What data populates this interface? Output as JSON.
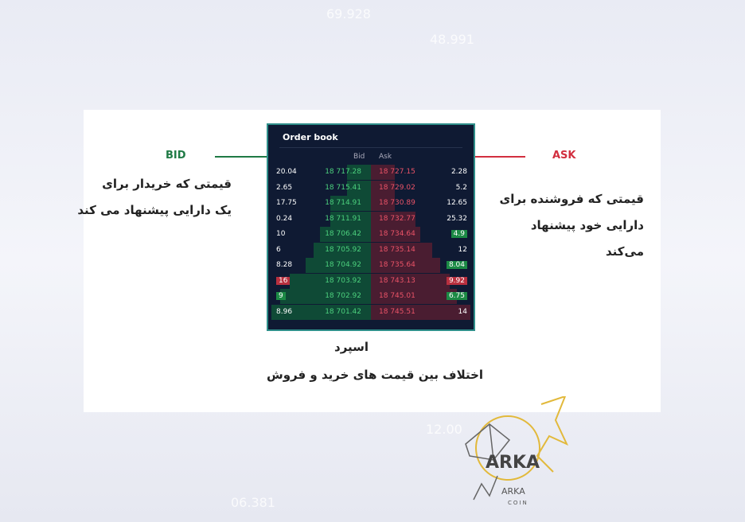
{
  "background_numbers": [
    "69.928",
    "48.991",
    "12.00",
    "06.381"
  ],
  "orderbook": {
    "title": "Order book",
    "bid_header": "Bid",
    "ask_header": "Ask",
    "rows": [
      {
        "bid_amount": "20.04",
        "bid": "18 717.28",
        "ask": "18 727.15",
        "ask_amount": "2.28"
      },
      {
        "bid_amount": "2.65",
        "bid": "18 715.41",
        "ask": "18 729.02",
        "ask_amount": "5.2"
      },
      {
        "bid_amount": "17.75",
        "bid": "18 714.91",
        "ask": "18 730.89",
        "ask_amount": "12.65"
      },
      {
        "bid_amount": "0.24",
        "bid": "18 711.91",
        "ask": "18 732.77",
        "ask_amount": "25.32"
      },
      {
        "bid_amount": "10",
        "bid": "18 706.42",
        "ask": "18 734.64",
        "ask_amount": "4.9",
        "ask_tag": "green"
      },
      {
        "bid_amount": "6",
        "bid": "18 705.92",
        "ask": "18 735.14",
        "ask_amount": "12"
      },
      {
        "bid_amount": "8.28",
        "bid": "18 704.92",
        "ask": "18 735.64",
        "ask_amount": "8.04",
        "ask_tag": "green"
      },
      {
        "bid_amount": "16",
        "bid_tag": "red",
        "bid": "18 703.92",
        "ask": "18 743.13",
        "ask_amount": "9.92",
        "ask_tag": "red"
      },
      {
        "bid_amount": "9",
        "bid_tag": "green",
        "bid": "18 702.92",
        "ask": "18 745.01",
        "ask_amount": "6.75",
        "ask_tag": "green"
      },
      {
        "bid_amount": "8.96",
        "bid": "18 701.42",
        "ask": "18 745.51",
        "ask_amount": "14"
      }
    ]
  },
  "labels": {
    "bid": "BID",
    "ask": "ASK",
    "bid_color": "#1f7a45",
    "ask_color": "#d22f3f",
    "bid_desc": [
      "قیمتی که خریدار برای",
      "یک دارایی پیشنهاد می کند"
    ],
    "ask_desc": [
      "قیمتی که فروشنده برای",
      "دارایی خود پیشنهاد",
      "می‌کند"
    ],
    "spread_title": "اسپرد",
    "spread_desc": "اختلاف بین قیمت های خرید و فروش"
  },
  "logo": {
    "text": "ARKA",
    "sub": "COIN"
  }
}
